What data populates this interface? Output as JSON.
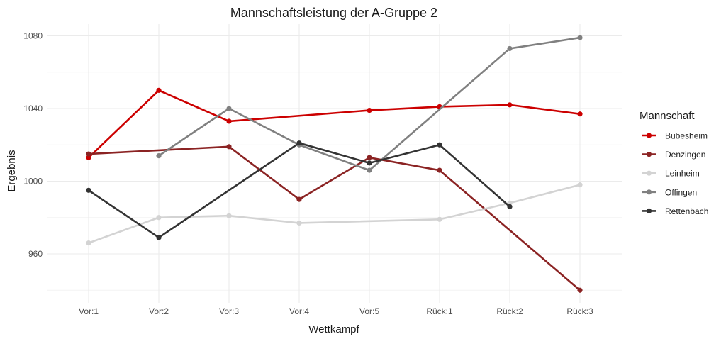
{
  "chart_data": {
    "type": "line",
    "title": "Mannschaftsleistung der A-Gruppe 2",
    "xlabel": "Wettkampf",
    "ylabel": "Ergebnis",
    "categories": [
      "Vor:1",
      "Vor:2",
      "Vor:3",
      "Vor:4",
      "Vor:5",
      "Rück:1",
      "Rück:2",
      "Rück:3"
    ],
    "y_ticks": [
      960,
      1000,
      1040,
      1080
    ],
    "y_minor_ticks": [
      940,
      980,
      1020,
      1060
    ],
    "ylim": [
      933,
      1088
    ],
    "grid": true,
    "legend_position": "right",
    "legend_title": "Mannschaft",
    "series": [
      {
        "name": "Bubesheim",
        "color": "#CC0000",
        "values": [
          1013,
          1050,
          1033,
          null,
          1039,
          1041,
          1042,
          1037
        ]
      },
      {
        "name": "Denzingen",
        "color": "#8B2323",
        "values": [
          1015,
          null,
          1019,
          990,
          1013,
          1006,
          null,
          940
        ]
      },
      {
        "name": "Leinheim",
        "color": "#D3D3D3",
        "values": [
          966,
          980,
          981,
          977,
          null,
          979,
          988,
          998
        ]
      },
      {
        "name": "Offingen",
        "color": "#808080",
        "values": [
          null,
          1014,
          1040,
          1020,
          1006,
          null,
          1073,
          1079
        ]
      },
      {
        "name": "Rettenbach",
        "color": "#333333",
        "values": [
          995,
          969,
          null,
          1021,
          1010,
          1020,
          986,
          null
        ]
      }
    ]
  }
}
